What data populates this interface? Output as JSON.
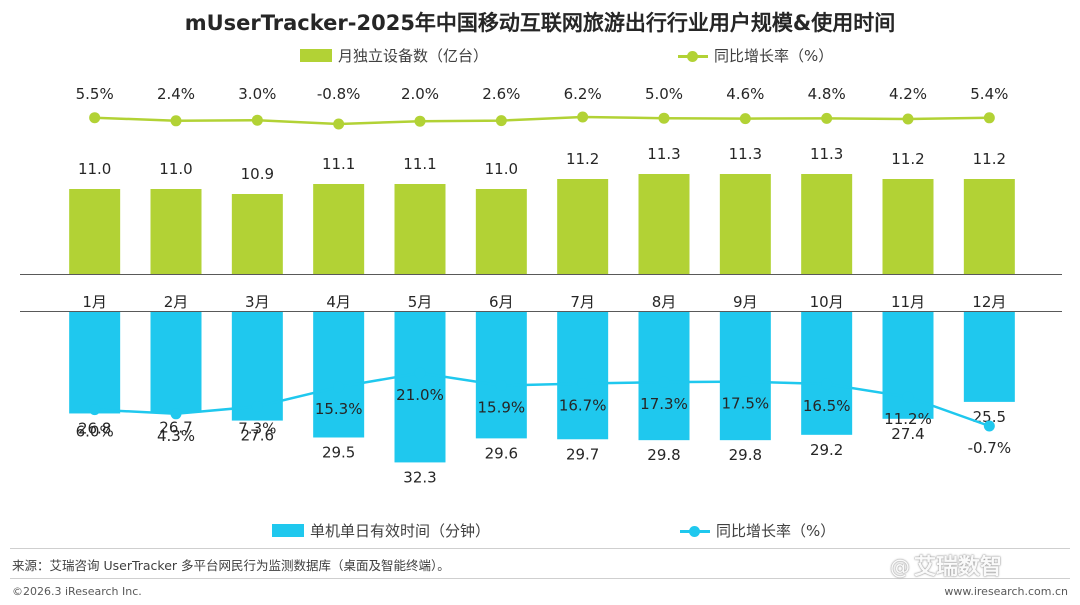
{
  "title": "mUserTracker-2025年中国移动互联网旅游出行行业用户规模&使用时间",
  "legend": {
    "devices": "月独立设备数（亿台）",
    "devices_growth": "同比增长率（%）",
    "time": "单机单日有效时间（分钟）",
    "time_growth": "同比增长率（%）"
  },
  "colors": {
    "green": "#B2D235",
    "cyan": "#1FC8EE",
    "text": "#262626"
  },
  "chart_data": [
    {
      "type": "bar",
      "categories": [
        "1月",
        "2月",
        "3月",
        "4月",
        "5月",
        "6月",
        "7月",
        "8月",
        "9月",
        "10月",
        "11月",
        "12月"
      ],
      "series": [
        {
          "name": "月独立设备数（亿台）",
          "type": "bar",
          "values": [
            11.0,
            11.0,
            10.9,
            11.1,
            11.1,
            11.0,
            11.2,
            11.3,
            11.3,
            11.3,
            11.2,
            11.2
          ],
          "labels": [
            "11.0",
            "11.0",
            "10.9",
            "11.1",
            "11.1",
            "11.0",
            "11.2",
            "11.3",
            "11.3",
            "11.3",
            "11.2",
            "11.2"
          ]
        },
        {
          "name": "同比增长率（%）",
          "type": "line",
          "values": [
            5.5,
            2.4,
            3.0,
            -0.8,
            2.0,
            2.6,
            6.2,
            5.0,
            4.6,
            4.8,
            4.2,
            5.4
          ],
          "labels": [
            "5.5%",
            "2.4%",
            "3.0%",
            "-0.8%",
            "2.0%",
            "2.6%",
            "6.2%",
            "5.0%",
            "4.6%",
            "4.8%",
            "4.2%",
            "5.4%"
          ]
        }
      ]
    },
    {
      "type": "bar",
      "orientation": "downward",
      "categories": [
        "1月",
        "2月",
        "3月",
        "4月",
        "5月",
        "6月",
        "7月",
        "8月",
        "9月",
        "10月",
        "11月",
        "12月"
      ],
      "series": [
        {
          "name": "单机单日有效时间（分钟）",
          "type": "bar",
          "values": [
            26.8,
            26.7,
            27.6,
            29.5,
            32.3,
            29.6,
            29.7,
            29.8,
            29.8,
            29.2,
            27.4,
            25.5
          ],
          "labels": [
            "26.8",
            "26.7",
            "27.6",
            "29.5",
            "32.3",
            "29.6",
            "29.7",
            "29.8",
            "29.8",
            "29.2",
            "27.4",
            "25.5"
          ]
        },
        {
          "name": "同比增长率（%）",
          "type": "line",
          "values": [
            6.0,
            4.3,
            7.3,
            15.3,
            21.0,
            15.9,
            16.7,
            17.3,
            17.5,
            16.5,
            11.2,
            -0.7
          ],
          "labels": [
            "6.0%",
            "4.3%",
            "7.3%",
            "15.3%",
            "21.0%",
            "15.9%",
            "16.7%",
            "17.3%",
            "17.5%",
            "16.5%",
            "11.2%",
            "-0.7%"
          ]
        }
      ]
    }
  ],
  "source": "来源：艾瑞咨询 UserTracker 多平台网民行为监测数据库（桌面及智能终端）。",
  "copyright": "©2026.3 iResearch Inc.",
  "website": "www.iresearch.com.cn",
  "watermark": {
    "icon": "@",
    "text": "艾瑞数智"
  }
}
